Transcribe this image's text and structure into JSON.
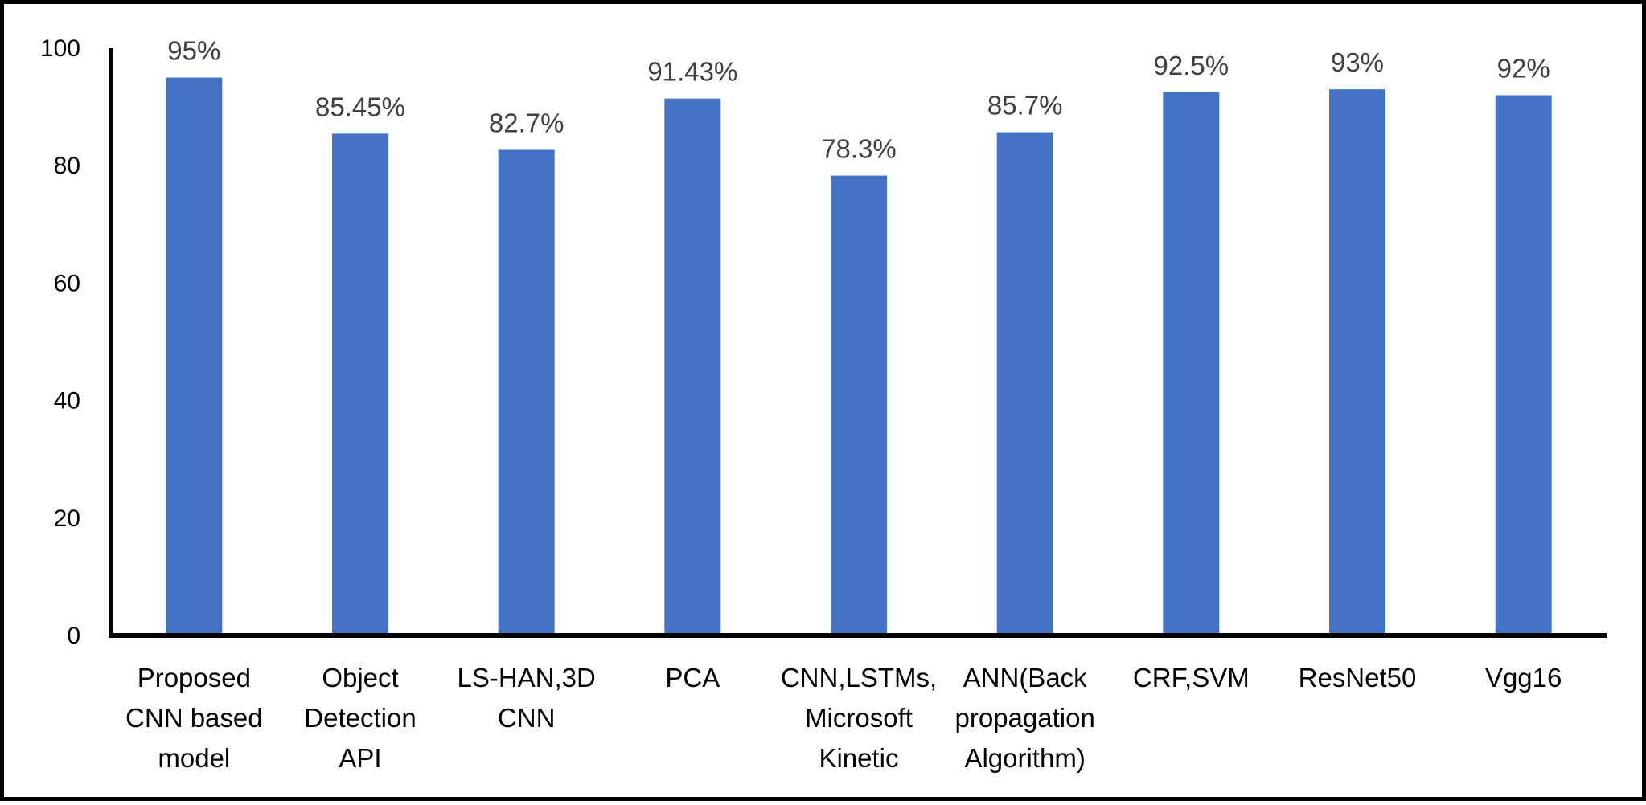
{
  "chart_data": {
    "type": "bar",
    "categories": [
      "Proposed CNN based model",
      "Object Detection API",
      "LS-HAN,3D CNN",
      "PCA",
      "CNN,LSTMs, Microsoft Kinetic",
      "ANN(Back propagation Algorithm)",
      "CRF,SVM",
      "ResNet50",
      "Vgg16"
    ],
    "category_lines": [
      [
        "Proposed",
        "CNN based",
        "model"
      ],
      [
        "Object",
        "Detection",
        "API"
      ],
      [
        "LS-HAN,3D",
        "CNN"
      ],
      [
        "PCA"
      ],
      [
        "CNN,LSTMs,",
        "Microsoft",
        "Kinetic"
      ],
      [
        "ANN(Back",
        "propagation",
        "Algorithm)"
      ],
      [
        "CRF,SVM"
      ],
      [
        "ResNet50"
      ],
      [
        "Vgg16"
      ]
    ],
    "values": [
      95,
      85.45,
      82.7,
      91.43,
      78.3,
      85.7,
      92.5,
      93,
      92
    ],
    "data_labels": [
      "95%",
      "85.45%",
      "82.7%",
      "91.43%",
      "78.3%",
      "85.7%",
      "92.5%",
      "93%",
      "92%"
    ],
    "title": "",
    "xlabel": "",
    "ylabel": "",
    "ylim": [
      0,
      100
    ],
    "yticks": [
      "0",
      "20",
      "40",
      "60",
      "80",
      "100"
    ],
    "grid": false,
    "legend": "none",
    "bar_color": "#4472C4",
    "axis_color": "#000000",
    "data_label_color": "#404040"
  }
}
